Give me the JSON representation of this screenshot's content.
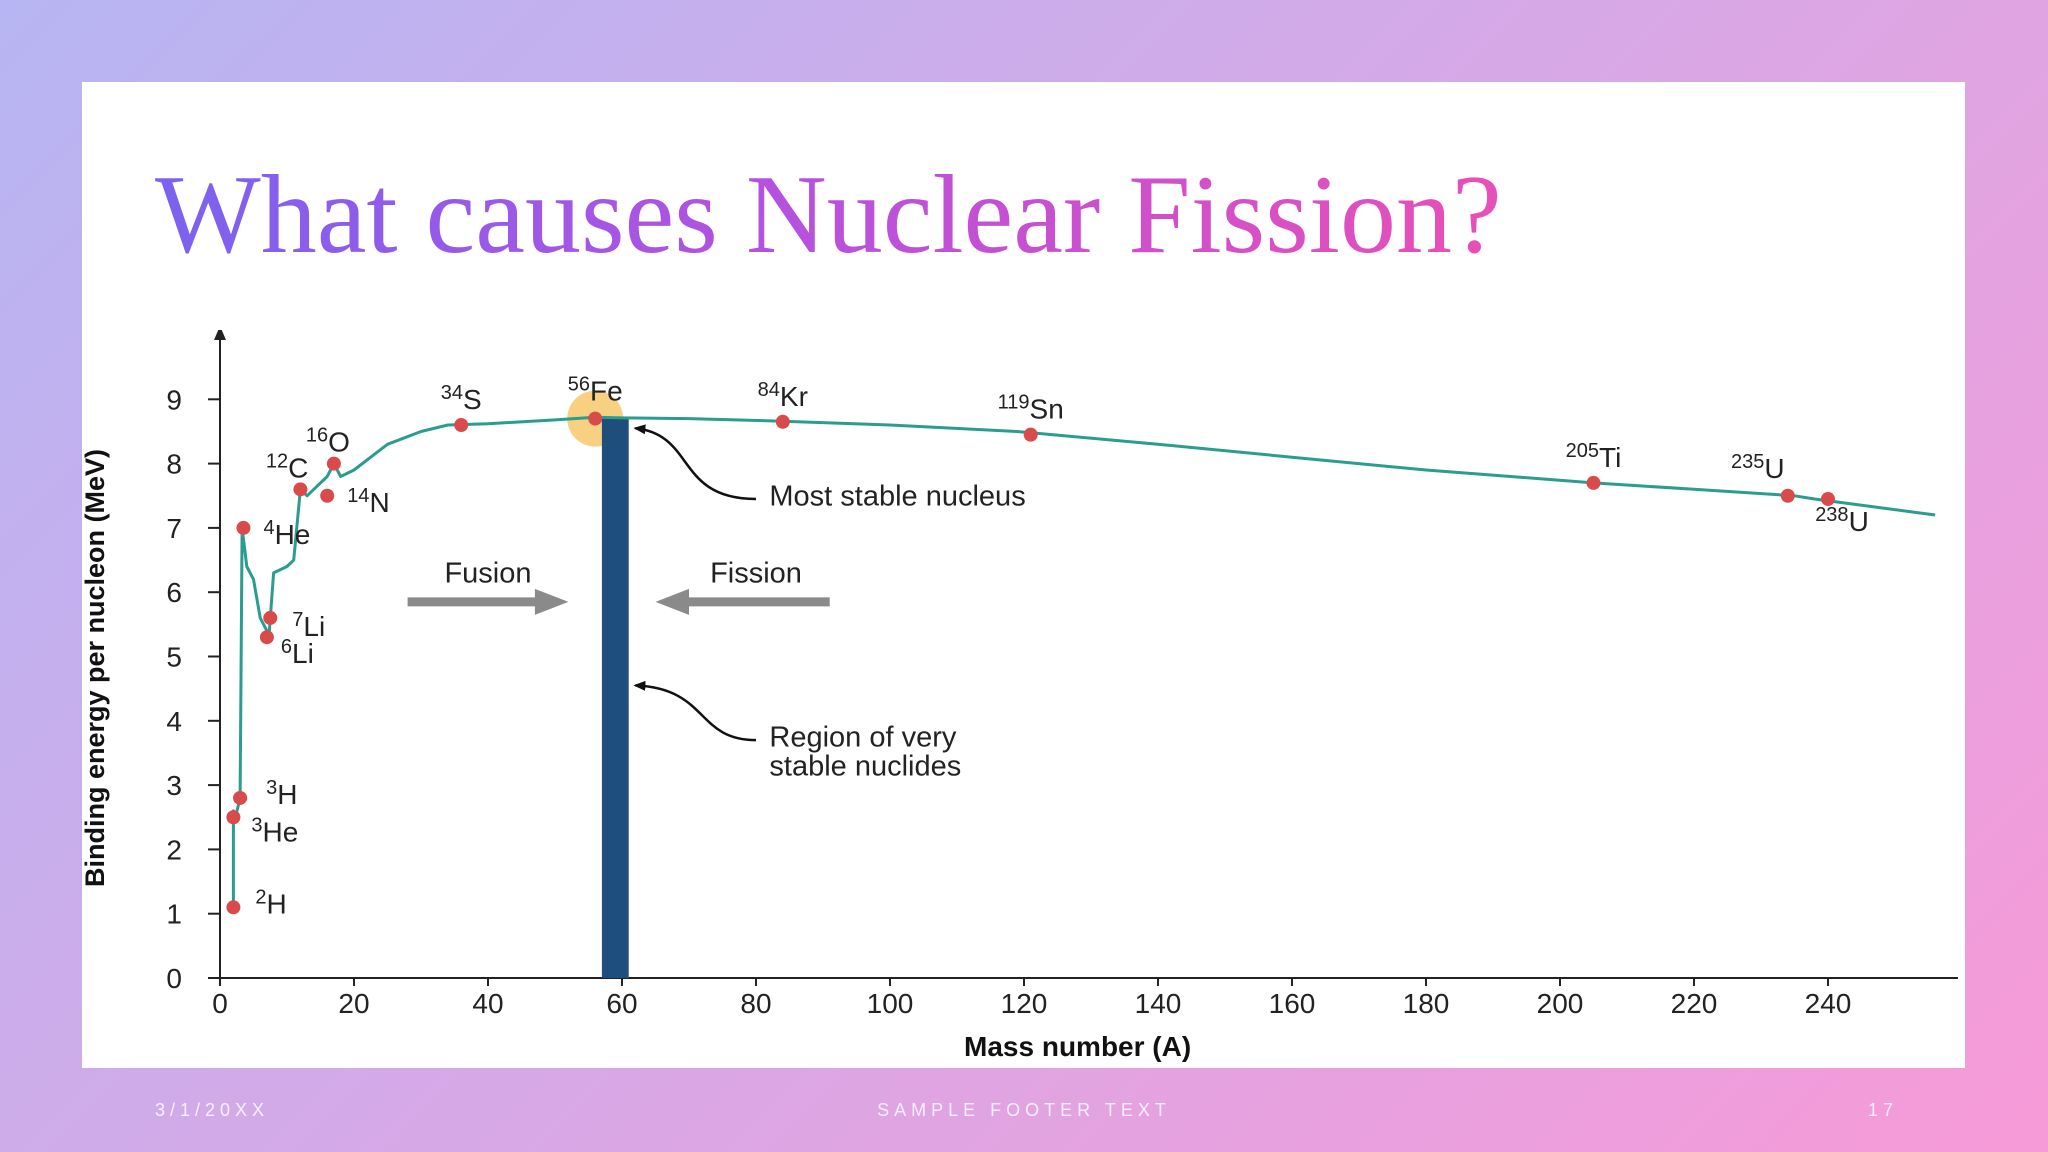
{
  "slide": {
    "title": "What causes Nuclear Fission?",
    "footer_date": "3/1/20XX",
    "footer_text": "SAMPLE FOOTER TEXT",
    "page_number": "17"
  },
  "colors": {
    "curve": "#2a9d8f",
    "points": "#d94a4a",
    "stable_band": "#1d4e7c",
    "highlight": "#f6c96b",
    "arrows": "#8a8a8a",
    "axis": "#222222"
  },
  "chart_data": {
    "type": "line",
    "title": "",
    "xlabel": "Mass number (A)",
    "ylabel": "Binding energy per nucleon (MeV)",
    "xlim": [
      0,
      258
    ],
    "ylim": [
      0,
      9.8
    ],
    "x_ticks": [
      0,
      20,
      40,
      60,
      80,
      100,
      120,
      140,
      160,
      180,
      200,
      220,
      240
    ],
    "y_ticks": [
      0,
      1,
      2,
      3,
      4,
      5,
      6,
      7,
      8,
      9
    ],
    "grid": false,
    "curve": {
      "x": [
        2,
        2,
        2.3,
        3,
        3.3,
        4,
        5,
        6,
        7,
        7.3,
        8,
        10,
        11,
        12,
        13,
        14,
        16,
        17,
        18,
        20,
        25,
        30,
        34,
        40,
        50,
        56,
        60,
        70,
        84,
        100,
        119,
        140,
        160,
        180,
        205,
        220,
        235,
        238,
        256
      ],
      "y": [
        1.1,
        2.6,
        2.5,
        2.8,
        7.0,
        6.4,
        6.2,
        5.6,
        5.4,
        5.3,
        6.3,
        6.4,
        6.5,
        7.6,
        7.5,
        7.6,
        7.8,
        8.0,
        7.8,
        7.9,
        8.3,
        8.5,
        8.6,
        8.62,
        8.68,
        8.72,
        8.71,
        8.7,
        8.66,
        8.6,
        8.5,
        8.3,
        8.1,
        7.9,
        7.7,
        7.6,
        7.5,
        7.45,
        7.2
      ]
    },
    "nuclides": [
      {
        "label_pre": "2",
        "label": "H",
        "x": 2,
        "y": 1.1
      },
      {
        "label_pre": "3",
        "label": "He",
        "x": 2,
        "y": 2.5
      },
      {
        "label_pre": "3",
        "label": "H",
        "x": 3,
        "y": 2.8
      },
      {
        "label_pre": "4",
        "label": "He",
        "x": 3.5,
        "y": 7.0
      },
      {
        "label_pre": "6",
        "label": "Li",
        "x": 7,
        "y": 5.3
      },
      {
        "label_pre": "7",
        "label": "Li",
        "x": 7.5,
        "y": 5.6
      },
      {
        "label_pre": "12",
        "label": "C",
        "x": 12,
        "y": 7.6
      },
      {
        "label_pre": "14",
        "label": "N",
        "x": 16,
        "y": 7.5
      },
      {
        "label_pre": "16",
        "label": "O",
        "x": 17,
        "y": 8.0
      },
      {
        "label_pre": "34",
        "label": "S",
        "x": 36,
        "y": 8.6
      },
      {
        "label_pre": "56",
        "label": "Fe",
        "x": 56,
        "y": 8.7
      },
      {
        "label_pre": "84",
        "label": "Kr",
        "x": 84,
        "y": 8.65
      },
      {
        "label_pre": "119",
        "label": "Sn",
        "x": 121,
        "y": 8.45
      },
      {
        "label_pre": "205",
        "label": "Ti",
        "x": 205,
        "y": 7.7
      },
      {
        "label_pre": "235",
        "label": "U",
        "x": 234,
        "y": 7.5
      },
      {
        "label_pre": "238",
        "label": "U",
        "x": 240,
        "y": 7.45
      }
    ],
    "stable_region": {
      "x_start": 57,
      "x_end": 61
    },
    "most_stable": {
      "x": 56,
      "y": 8.7
    },
    "annotations": {
      "fusion": "Fusion",
      "fission": "Fission",
      "most_stable": "Most stable nucleus",
      "region_line1": "Region of very",
      "region_line2": "stable nuclides"
    }
  }
}
